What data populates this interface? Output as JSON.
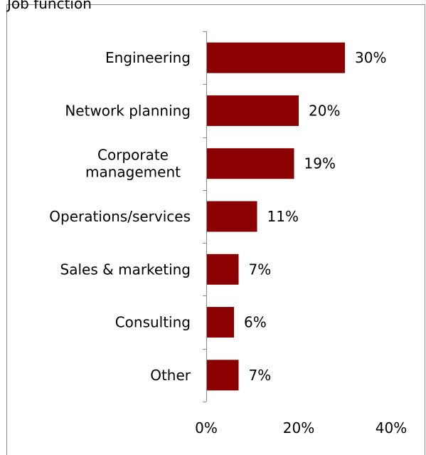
{
  "header": {
    "cut_off_title": "Job function"
  },
  "chart_data": {
    "type": "bar",
    "orientation": "horizontal",
    "categories": [
      [
        "Engineering"
      ],
      [
        "Network planning"
      ],
      [
        "Corporate",
        "management"
      ],
      [
        "Operations/services"
      ],
      [
        "Sales & marketing"
      ],
      [
        "Consulting"
      ],
      [
        "Other"
      ]
    ],
    "values": [
      30,
      20,
      19,
      11,
      7,
      6,
      7
    ],
    "value_labels": [
      "30%",
      "20%",
      "19%",
      "11%",
      "7%",
      "6%",
      "7%"
    ],
    "x_ticks": [
      0,
      20,
      40
    ],
    "x_tick_labels": [
      "0%",
      "20%",
      "40%"
    ],
    "xlim": [
      0,
      40
    ],
    "grid": false,
    "legend": "none",
    "bar_color": "#8b0000"
  }
}
